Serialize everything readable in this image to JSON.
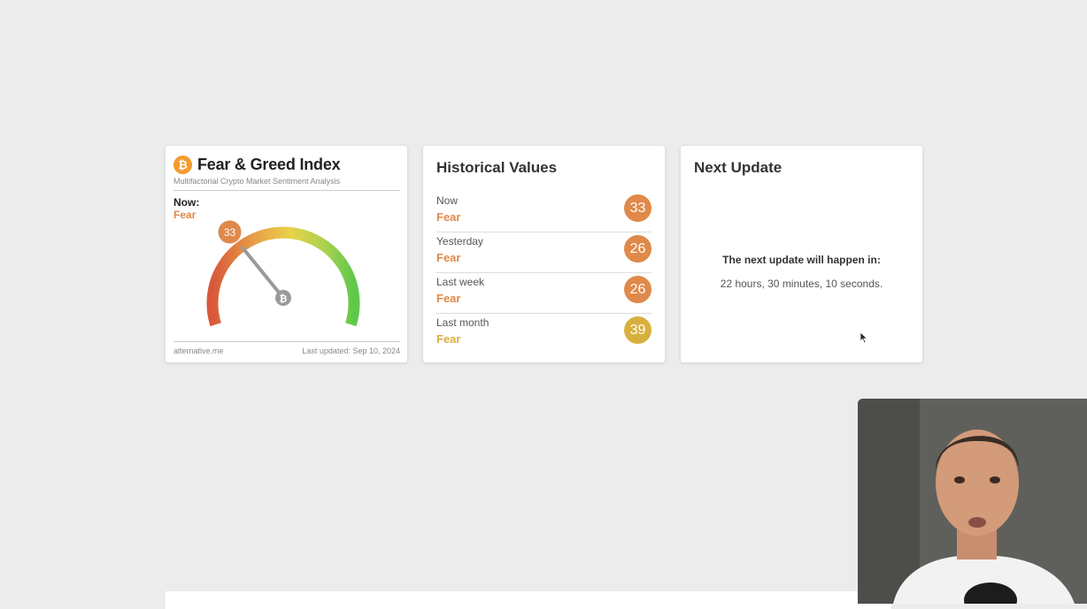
{
  "fear_greed": {
    "logo_glyph": "₿",
    "title": "Fear & Greed Index",
    "subtitle": "Multifactorial Crypto Market Sentiment Analysis",
    "now_label": "Now:",
    "now_value": "Fear",
    "gauge_value": 33,
    "gauge_value_label": "33",
    "gauge_min": 0,
    "gauge_max": 100,
    "needle_icon": "₿",
    "source": "alternative.me",
    "last_updated": "Last updated: Sep 10, 2024"
  },
  "historical": {
    "title": "Historical Values",
    "rows": [
      {
        "label": "Now",
        "classification": "Fear",
        "value": "33",
        "color": "#e0894a"
      },
      {
        "label": "Yesterday",
        "classification": "Fear",
        "value": "26",
        "color": "#e0894a"
      },
      {
        "label": "Last week",
        "classification": "Fear",
        "value": "26",
        "color": "#e0894a"
      },
      {
        "label": "Last month",
        "classification": "Fear",
        "value": "39",
        "color": "#d8b03e"
      }
    ]
  },
  "next_update": {
    "title": "Next Update",
    "message": "The next update will happen in:",
    "countdown": "22 hours, 30 minutes, 10 seconds."
  },
  "colors": {
    "fear": "#e0894a",
    "neutral_fear": "#d8b03e",
    "bitcoin": "#f39a2d",
    "background": "#ececec"
  }
}
